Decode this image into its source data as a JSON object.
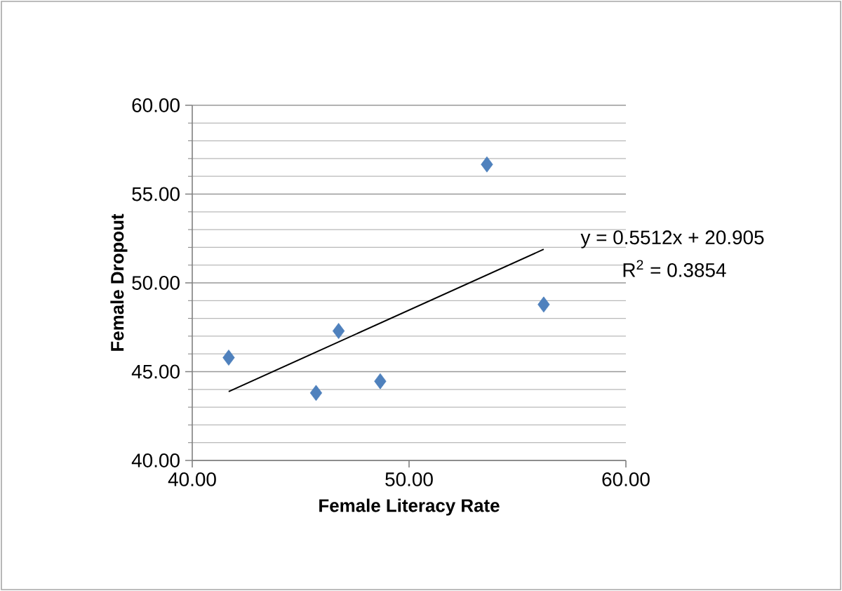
{
  "chart_data": {
    "type": "scatter",
    "xlabel": "Female Literacy Rate",
    "ylabel": "Female Dropout",
    "xlim": [
      40,
      60
    ],
    "ylim": [
      40,
      60
    ],
    "xticks": [
      {
        "value": 40,
        "label": "40.00"
      },
      {
        "value": 50,
        "label": "50.00"
      },
      {
        "value": 60,
        "label": "60.00"
      }
    ],
    "yticks": [
      {
        "value": 40,
        "label": "40.00"
      },
      {
        "value": 45,
        "label": "45.00"
      },
      {
        "value": 50,
        "label": "50.00"
      },
      {
        "value": 55,
        "label": "55.00"
      },
      {
        "value": 60,
        "label": "60.00"
      }
    ],
    "grid": "y",
    "series": [
      {
        "marker": "diamond",
        "color": "#4f81bd",
        "x": [
          41.68,
          45.71,
          46.75,
          48.67,
          53.59,
          56.21
        ],
        "values": [
          45.79,
          43.8,
          47.29,
          44.46,
          56.67,
          48.78
        ]
      },
      {
        "type": "line",
        "marker": "none",
        "color": "#000000",
        "x": [
          41.68,
          56.21
        ],
        "values": [
          43.88,
          51.89
        ]
      }
    ],
    "annotations": [
      "y = 0.5512x + 20.905",
      "R$^{2}$ = 0.3854"
    ]
  }
}
